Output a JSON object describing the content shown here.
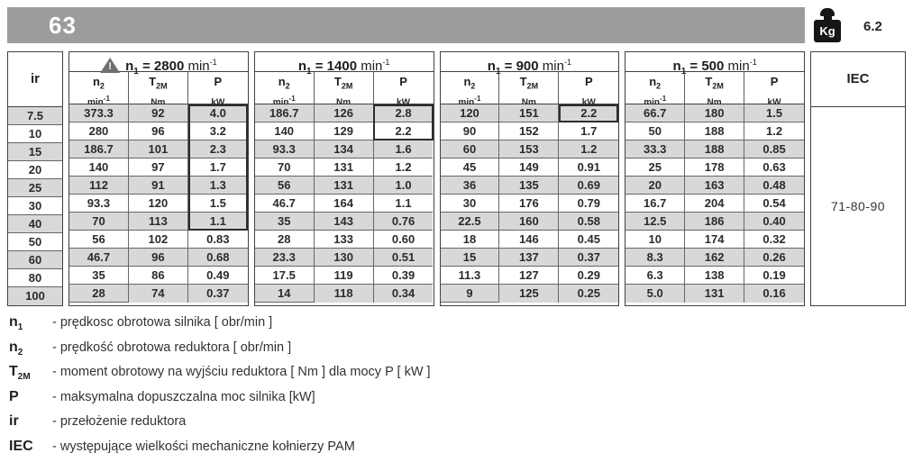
{
  "header": {
    "model": "63",
    "weight_unit": "Kg",
    "weight_value": "6.2"
  },
  "table": {
    "ir_label": "ir",
    "warning_glyph": "!",
    "groups": [
      {
        "symbol": "n",
        "symbol_sub": "1",
        "mid": " = 2800 ",
        "unit": "min",
        "unit_sup": "-1"
      },
      {
        "symbol": "n",
        "symbol_sub": "1",
        "mid": " = 1400 ",
        "unit": "min",
        "unit_sup": "-1"
      },
      {
        "symbol": "n",
        "symbol_sub": "1",
        "mid": " = 900 ",
        "unit": "min",
        "unit_sup": "-1"
      },
      {
        "symbol": "n",
        "symbol_sub": "1",
        "mid": " = 500 ",
        "unit": "min",
        "unit_sup": "-1"
      }
    ],
    "subcols": [
      {
        "sym": "n",
        "sym_sub": "2",
        "unit": "min",
        "unit_sup": "-1"
      },
      {
        "sym": "T",
        "sym_sub": "2M",
        "unit": "Nm",
        "unit_sup": ""
      },
      {
        "sym": "P",
        "sym_sub": "",
        "unit": "kW",
        "unit_sup": ""
      }
    ],
    "iec_label": "IEC",
    "iec_value": "71-80-90",
    "rows": [
      {
        "ir": "7.5",
        "cells": [
          [
            "373.3",
            "92",
            "4.0"
          ],
          [
            "186.7",
            "126",
            "2.8"
          ],
          [
            "120",
            "151",
            "2.2"
          ],
          [
            "66.7",
            "180",
            "1.5"
          ]
        ]
      },
      {
        "ir": "10",
        "cells": [
          [
            "280",
            "96",
            "3.2"
          ],
          [
            "140",
            "129",
            "2.2"
          ],
          [
            "90",
            "152",
            "1.7"
          ],
          [
            "50",
            "188",
            "1.2"
          ]
        ]
      },
      {
        "ir": "15",
        "cells": [
          [
            "186.7",
            "101",
            "2.3"
          ],
          [
            "93.3",
            "134",
            "1.6"
          ],
          [
            "60",
            "153",
            "1.2"
          ],
          [
            "33.3",
            "188",
            "0.85"
          ]
        ]
      },
      {
        "ir": "20",
        "cells": [
          [
            "140",
            "97",
            "1.7"
          ],
          [
            "70",
            "131",
            "1.2"
          ],
          [
            "45",
            "149",
            "0.91"
          ],
          [
            "25",
            "178",
            "0.63"
          ]
        ]
      },
      {
        "ir": "25",
        "cells": [
          [
            "112",
            "91",
            "1.3"
          ],
          [
            "56",
            "131",
            "1.0"
          ],
          [
            "36",
            "135",
            "0.69"
          ],
          [
            "20",
            "163",
            "0.48"
          ]
        ]
      },
      {
        "ir": "30",
        "cells": [
          [
            "93.3",
            "120",
            "1.5"
          ],
          [
            "46.7",
            "164",
            "1.1"
          ],
          [
            "30",
            "176",
            "0.79"
          ],
          [
            "16.7",
            "204",
            "0.54"
          ]
        ]
      },
      {
        "ir": "40",
        "cells": [
          [
            "70",
            "113",
            "1.1"
          ],
          [
            "35",
            "143",
            "0.76"
          ],
          [
            "22.5",
            "160",
            "0.58"
          ],
          [
            "12.5",
            "186",
            "0.40"
          ]
        ]
      },
      {
        "ir": "50",
        "cells": [
          [
            "56",
            "102",
            "0.83"
          ],
          [
            "28",
            "133",
            "0.60"
          ],
          [
            "18",
            "146",
            "0.45"
          ],
          [
            "10",
            "174",
            "0.32"
          ]
        ]
      },
      {
        "ir": "60",
        "cells": [
          [
            "46.7",
            "96",
            "0.68"
          ],
          [
            "23.3",
            "130",
            "0.51"
          ],
          [
            "15",
            "137",
            "0.37"
          ],
          [
            "8.3",
            "162",
            "0.26"
          ]
        ]
      },
      {
        "ir": "80",
        "cells": [
          [
            "35",
            "86",
            "0.49"
          ],
          [
            "17.5",
            "119",
            "0.39"
          ],
          [
            "11.3",
            "127",
            "0.29"
          ],
          [
            "6.3",
            "138",
            "0.19"
          ]
        ]
      },
      {
        "ir": "100",
        "cells": [
          [
            "28",
            "74",
            "0.37"
          ],
          [
            "14",
            "118",
            "0.34"
          ],
          [
            "9",
            "125",
            "0.25"
          ],
          [
            "5.0",
            "131",
            "0.16"
          ]
        ]
      }
    ],
    "p_highlights": [
      {
        "group": 0,
        "from": 0,
        "to": 6
      },
      {
        "group": 1,
        "from": 0,
        "to": 1
      },
      {
        "group": 2,
        "from": 0,
        "to": 0
      }
    ]
  },
  "legend": {
    "items": [
      {
        "symbol": "n",
        "symbol_sub": "1",
        "text": "- prędkosc obrotowa silnika [ obr/min ]"
      },
      {
        "symbol": "n",
        "symbol_sub": "2",
        "text": "- prędkość obrotowa reduktora [ obr/min ]"
      },
      {
        "symbol": "T",
        "symbol_sub": "2M",
        "text": "- moment obrotowy na wyjściu reduktora [ Nm ] dla mocy P [ kW ]"
      },
      {
        "symbol": "P",
        "symbol_sub": "",
        "text": "- maksymalna dopuszczalna moc silnika [kW]"
      },
      {
        "symbol": "ir",
        "symbol_sub": "",
        "text": "- przełożenie reduktora"
      },
      {
        "symbol": "IEC",
        "symbol_sub": "",
        "text": "- występujące wielkości mechaniczne kołnierzy PAM"
      }
    ]
  }
}
